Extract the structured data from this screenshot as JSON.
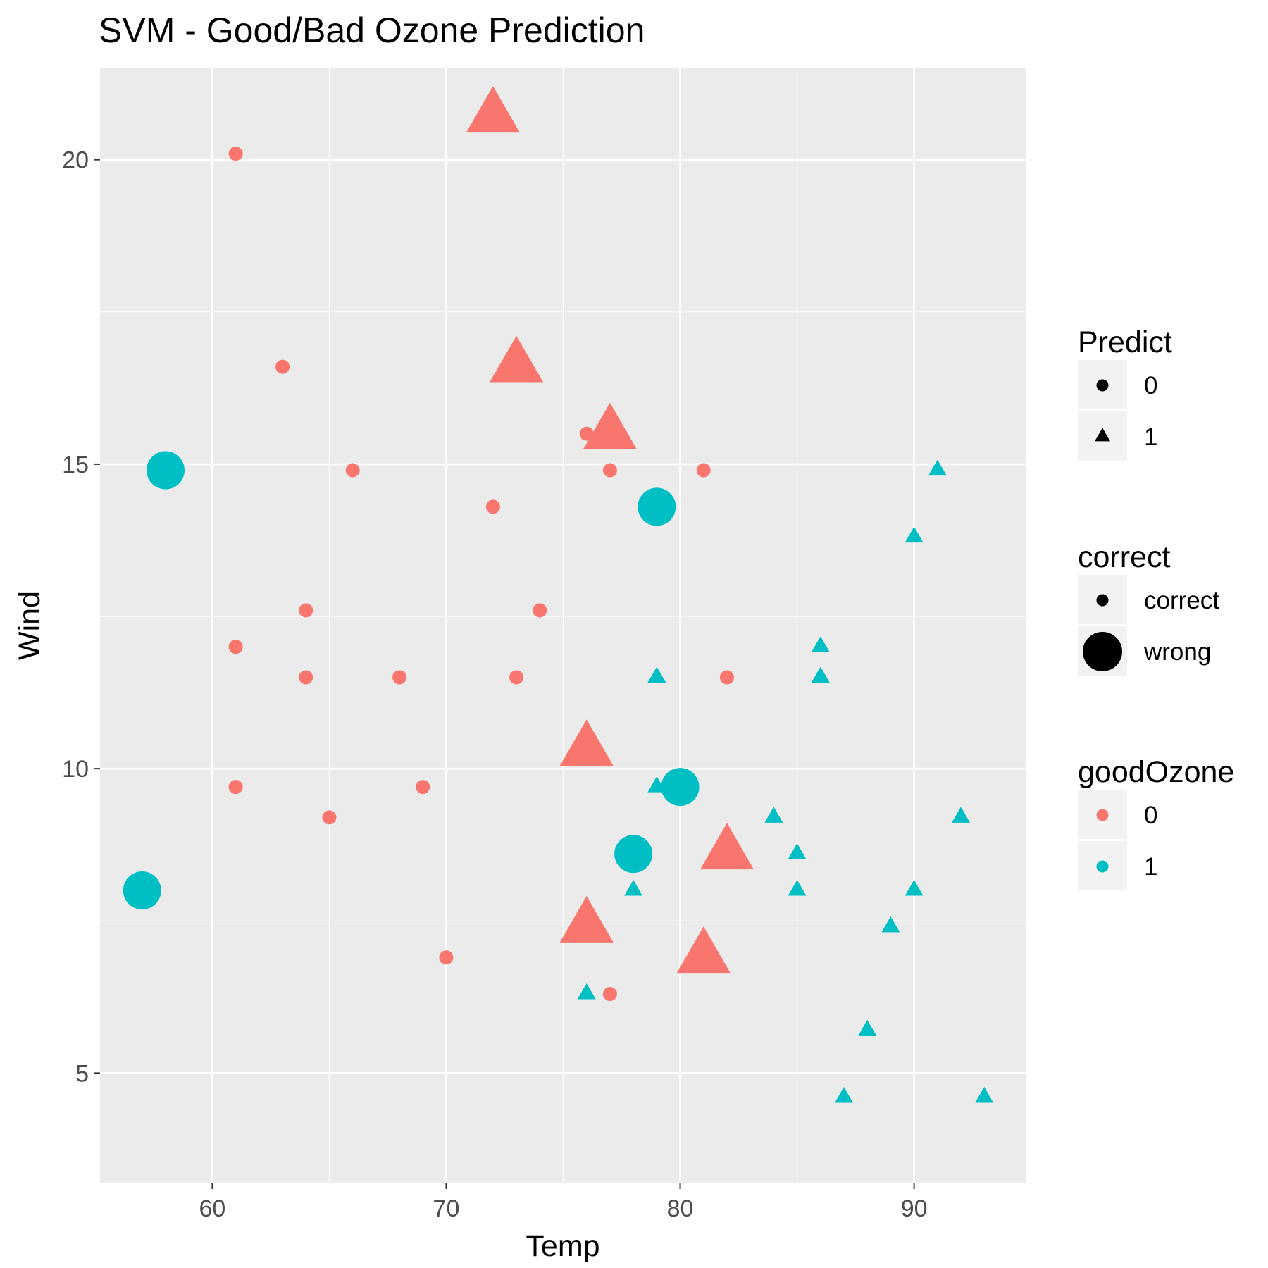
{
  "chart_data": {
    "type": "scatter",
    "title": "SVM - Good/Bad Ozone Prediction",
    "xlabel": "Temp",
    "ylabel": "Wind",
    "xlim": [
      55.2,
      94.8
    ],
    "ylim": [
      3.2,
      21.5
    ],
    "xticks": [
      60,
      70,
      80,
      90
    ],
    "yticks": [
      5,
      10,
      15,
      20
    ],
    "x_minor_gridlines": [
      65,
      75,
      85
    ],
    "y_minor_gridlines": [
      7.5,
      12.5,
      17.5
    ],
    "grid": true,
    "background": "#ebebeb",
    "colors": {
      "0": "#f8766d",
      "1": "#00bfc4"
    },
    "legend": {
      "placement": "right",
      "groups": [
        {
          "title": "Predict",
          "entries": [
            {
              "label": "0",
              "shape": "circle",
              "size": "small",
              "color": "#000000"
            },
            {
              "label": "1",
              "shape": "triangle",
              "size": "small",
              "color": "#000000"
            }
          ]
        },
        {
          "title": "correct",
          "entries": [
            {
              "label": "correct",
              "shape": "circle",
              "size": "small",
              "color": "#000000"
            },
            {
              "label": "wrong",
              "shape": "circle",
              "size": "large",
              "color": "#000000"
            }
          ]
        },
        {
          "title": "goodOzone",
          "entries": [
            {
              "label": "0",
              "shape": "circle",
              "size": "small",
              "color": "#f8766d"
            },
            {
              "label": "1",
              "shape": "circle",
              "size": "small",
              "color": "#00bfc4"
            }
          ]
        }
      ]
    },
    "points": [
      {
        "temp": 61,
        "wind": 20.1,
        "predict": 0,
        "correct": "correct",
        "goodOzone": 0
      },
      {
        "temp": 63,
        "wind": 16.6,
        "predict": 0,
        "correct": "correct",
        "goodOzone": 0
      },
      {
        "temp": 66,
        "wind": 14.9,
        "predict": 0,
        "correct": "correct",
        "goodOzone": 0
      },
      {
        "temp": 72,
        "wind": 14.3,
        "predict": 0,
        "correct": "correct",
        "goodOzone": 0
      },
      {
        "temp": 76,
        "wind": 15.5,
        "predict": 0,
        "correct": "correct",
        "goodOzone": 0
      },
      {
        "temp": 77,
        "wind": 14.9,
        "predict": 0,
        "correct": "correct",
        "goodOzone": 0
      },
      {
        "temp": 81,
        "wind": 14.9,
        "predict": 0,
        "correct": "correct",
        "goodOzone": 0
      },
      {
        "temp": 64,
        "wind": 12.6,
        "predict": 0,
        "correct": "correct",
        "goodOzone": 0
      },
      {
        "temp": 74,
        "wind": 12.6,
        "predict": 0,
        "correct": "correct",
        "goodOzone": 0
      },
      {
        "temp": 61,
        "wind": 12.0,
        "predict": 0,
        "correct": "correct",
        "goodOzone": 0
      },
      {
        "temp": 64,
        "wind": 11.5,
        "predict": 0,
        "correct": "correct",
        "goodOzone": 0
      },
      {
        "temp": 68,
        "wind": 11.5,
        "predict": 0,
        "correct": "correct",
        "goodOzone": 0
      },
      {
        "temp": 73,
        "wind": 11.5,
        "predict": 0,
        "correct": "correct",
        "goodOzone": 0
      },
      {
        "temp": 82,
        "wind": 11.5,
        "predict": 0,
        "correct": "correct",
        "goodOzone": 0
      },
      {
        "temp": 61,
        "wind": 9.7,
        "predict": 0,
        "correct": "correct",
        "goodOzone": 0
      },
      {
        "temp": 69,
        "wind": 9.7,
        "predict": 0,
        "correct": "correct",
        "goodOzone": 0
      },
      {
        "temp": 65,
        "wind": 9.2,
        "predict": 0,
        "correct": "correct",
        "goodOzone": 0
      },
      {
        "temp": 70,
        "wind": 6.9,
        "predict": 0,
        "correct": "correct",
        "goodOzone": 0
      },
      {
        "temp": 77,
        "wind": 6.3,
        "predict": 0,
        "correct": "correct",
        "goodOzone": 0
      },
      {
        "temp": 58,
        "wind": 14.9,
        "predict": 0,
        "correct": "wrong",
        "goodOzone": 1
      },
      {
        "temp": 79,
        "wind": 14.3,
        "predict": 0,
        "correct": "wrong",
        "goodOzone": 1
      },
      {
        "temp": 80,
        "wind": 9.7,
        "predict": 0,
        "correct": "wrong",
        "goodOzone": 1
      },
      {
        "temp": 78,
        "wind": 8.6,
        "predict": 0,
        "correct": "wrong",
        "goodOzone": 1
      },
      {
        "temp": 57,
        "wind": 8.0,
        "predict": 0,
        "correct": "wrong",
        "goodOzone": 1
      },
      {
        "temp": 72,
        "wind": 20.7,
        "predict": 1,
        "correct": "wrong",
        "goodOzone": 0
      },
      {
        "temp": 73,
        "wind": 16.6,
        "predict": 1,
        "correct": "wrong",
        "goodOzone": 0
      },
      {
        "temp": 77,
        "wind": 15.5,
        "predict": 1,
        "correct": "wrong",
        "goodOzone": 0
      },
      {
        "temp": 76,
        "wind": 10.3,
        "predict": 1,
        "correct": "wrong",
        "goodOzone": 0
      },
      {
        "temp": 82,
        "wind": 8.6,
        "predict": 1,
        "correct": "wrong",
        "goodOzone": 0
      },
      {
        "temp": 76,
        "wind": 7.4,
        "predict": 1,
        "correct": "wrong",
        "goodOzone": 0
      },
      {
        "temp": 81,
        "wind": 6.9,
        "predict": 1,
        "correct": "wrong",
        "goodOzone": 0
      },
      {
        "temp": 91,
        "wind": 14.9,
        "predict": 1,
        "correct": "correct",
        "goodOzone": 1
      },
      {
        "temp": 90,
        "wind": 13.8,
        "predict": 1,
        "correct": "correct",
        "goodOzone": 1
      },
      {
        "temp": 86,
        "wind": 12.0,
        "predict": 1,
        "correct": "correct",
        "goodOzone": 1
      },
      {
        "temp": 79,
        "wind": 11.5,
        "predict": 1,
        "correct": "correct",
        "goodOzone": 1
      },
      {
        "temp": 86,
        "wind": 11.5,
        "predict": 1,
        "correct": "correct",
        "goodOzone": 1
      },
      {
        "temp": 79,
        "wind": 9.7,
        "predict": 1,
        "correct": "correct",
        "goodOzone": 1
      },
      {
        "temp": 84,
        "wind": 9.2,
        "predict": 1,
        "correct": "correct",
        "goodOzone": 1
      },
      {
        "temp": 92,
        "wind": 9.2,
        "predict": 1,
        "correct": "correct",
        "goodOzone": 1
      },
      {
        "temp": 85,
        "wind": 8.6,
        "predict": 1,
        "correct": "correct",
        "goodOzone": 1
      },
      {
        "temp": 78,
        "wind": 8.0,
        "predict": 1,
        "correct": "correct",
        "goodOzone": 1
      },
      {
        "temp": 85,
        "wind": 8.0,
        "predict": 1,
        "correct": "correct",
        "goodOzone": 1
      },
      {
        "temp": 90,
        "wind": 8.0,
        "predict": 1,
        "correct": "correct",
        "goodOzone": 1
      },
      {
        "temp": 89,
        "wind": 7.4,
        "predict": 1,
        "correct": "correct",
        "goodOzone": 1
      },
      {
        "temp": 76,
        "wind": 6.3,
        "predict": 1,
        "correct": "correct",
        "goodOzone": 1
      },
      {
        "temp": 88,
        "wind": 5.7,
        "predict": 1,
        "correct": "correct",
        "goodOzone": 1
      },
      {
        "temp": 87,
        "wind": 4.6,
        "predict": 1,
        "correct": "correct",
        "goodOzone": 1
      },
      {
        "temp": 93,
        "wind": 4.6,
        "predict": 1,
        "correct": "correct",
        "goodOzone": 1
      }
    ]
  }
}
